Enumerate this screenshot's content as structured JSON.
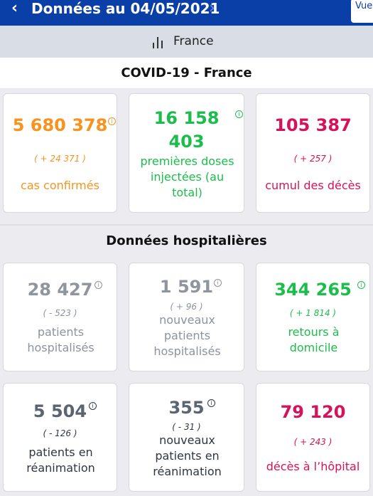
{
  "header": {
    "title": "Données au 04/05/2021",
    "view_button_label": "Vue"
  },
  "region": {
    "label": "France"
  },
  "sections": {
    "covid_title": "COVID-19 - France",
    "hospital_title": "Données hospitalières"
  },
  "colors": {
    "header_bg": "#0a3fa8",
    "orange": "#f7931e",
    "green": "#1bbe4a",
    "red": "#d6125a",
    "gray": "#8d939c"
  },
  "covid_cards": [
    {
      "value": "5 680 378",
      "delta": "( + 24 371 )",
      "label": "cas confirmés"
    },
    {
      "value_line1": "16 158",
      "value_line2": "403",
      "label": "premières doses injectées (au total)"
    },
    {
      "value": "105 387",
      "delta": "( + 257 )",
      "label": "cumul des décès"
    }
  ],
  "hospital_cards": [
    {
      "value": "28 427",
      "delta": "( - 523 )",
      "label": "patients hospitalisés"
    },
    {
      "value": "1 591",
      "delta": "( + 96 )",
      "label": "nouveaux patients hospitalisés"
    },
    {
      "value": "344 265",
      "delta": "( + 1 814 )",
      "label": "retours à domicile"
    },
    {
      "value": "5 504",
      "delta": "( - 126 )",
      "label": "patients en réanimation"
    },
    {
      "value": "355",
      "delta": "( - 31 )",
      "label": "nouveaux patients en réanimation"
    },
    {
      "value": "79 120",
      "delta": "( + 243 )",
      "label": "décès à l’hôpital"
    }
  ],
  "info_glyph": "i"
}
